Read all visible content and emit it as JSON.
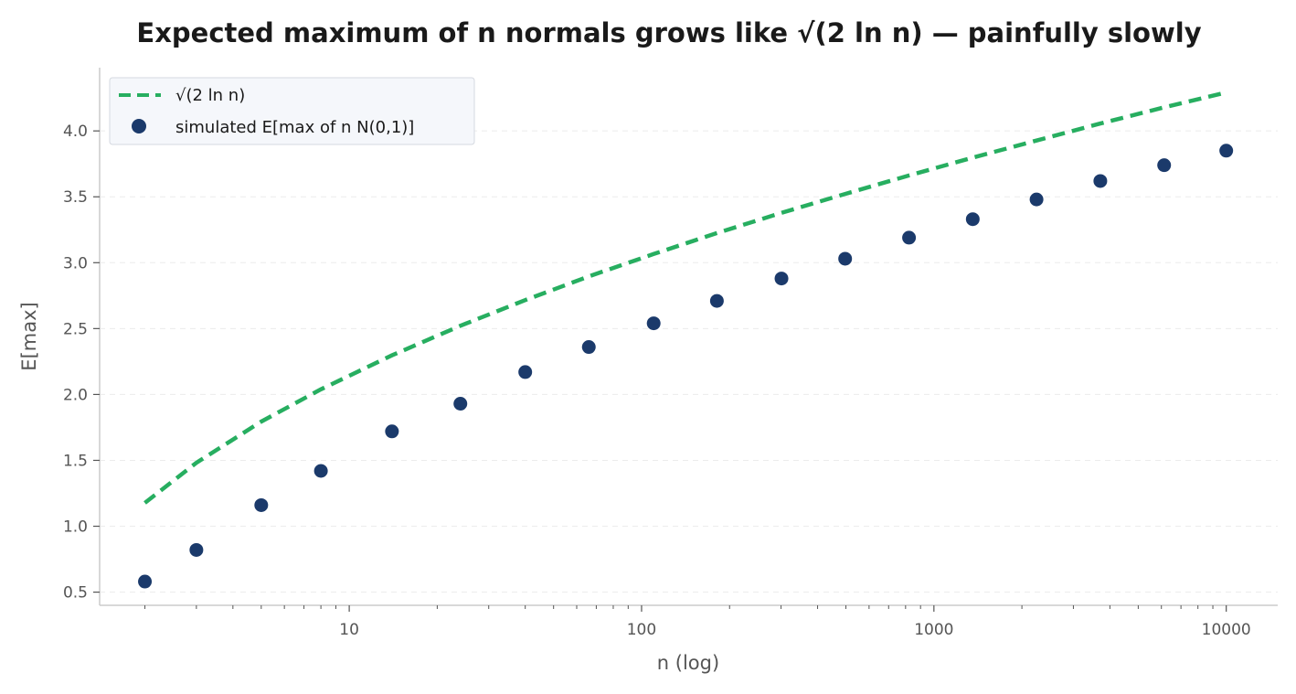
{
  "chart_data": {
    "type": "scatter",
    "title": "Expected maximum of n normals grows like √(2 ln n) — painfully slowly",
    "xlabel": "n (log)",
    "ylabel": "E[max]",
    "xscale": "log",
    "xlim": [
      1.4,
      15000
    ],
    "ylim": [
      0.4,
      4.48
    ],
    "xticks": [
      10,
      100,
      1000,
      10000
    ],
    "xtick_labels": [
      "10",
      "100",
      "1000",
      "10000"
    ],
    "yticks": [
      0.5,
      1.0,
      1.5,
      2.0,
      2.5,
      3.0,
      3.5,
      4.0
    ],
    "ytick_labels": [
      "0.5",
      "1.0",
      "1.5",
      "2.0",
      "2.5",
      "3.0",
      "3.5",
      "4.0"
    ],
    "grid": "horizontal dashed",
    "legend": "top-left",
    "series": [
      {
        "name": "√(2 ln n)",
        "kind": "line",
        "style": "dashed",
        "color": "#27ae60",
        "x": [
          2,
          3,
          5,
          8,
          14,
          24,
          40,
          66,
          110,
          181,
          301,
          497,
          822,
          1358,
          2244,
          3709,
          6131,
          10000
        ],
        "y": [
          1.177,
          1.482,
          1.794,
          2.039,
          2.297,
          2.521,
          2.716,
          2.896,
          3.066,
          3.225,
          3.378,
          3.522,
          3.662,
          3.797,
          3.927,
          4.056,
          4.179,
          4.292
        ]
      },
      {
        "name": "simulated E[max of n N(0,1)]",
        "kind": "scatter",
        "color": "#1b3a6b",
        "x": [
          2,
          3,
          5,
          8,
          14,
          24,
          40,
          66,
          110,
          181,
          301,
          497,
          822,
          1358,
          2244,
          3709,
          6131,
          10000
        ],
        "y": [
          0.58,
          0.82,
          1.16,
          1.42,
          1.72,
          1.93,
          2.17,
          2.36,
          2.54,
          2.71,
          2.88,
          3.03,
          3.19,
          3.33,
          3.48,
          3.62,
          3.74,
          3.85
        ]
      }
    ]
  }
}
